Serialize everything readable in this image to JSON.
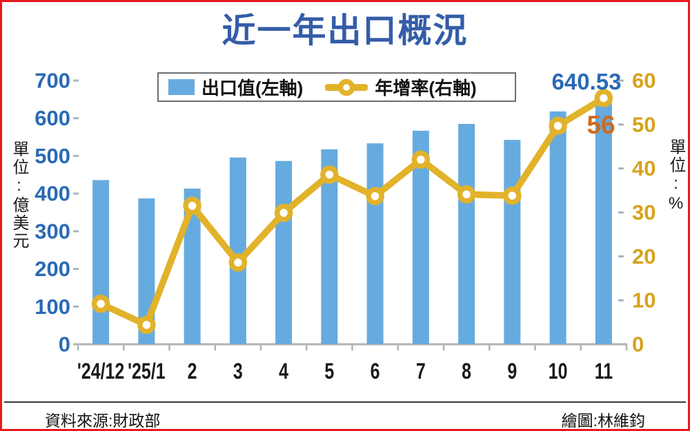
{
  "title": {
    "text": "近一年出口概況"
  },
  "legend": {
    "items": [
      {
        "label": "出口值(左軸)",
        "swatch": "bar"
      },
      {
        "label": "年增率(右軸)",
        "swatch": "line-marker"
      }
    ]
  },
  "axes": {
    "left_unit": "單位:億美元",
    "right_unit": "單位:%"
  },
  "annotations": {
    "last_export_value": "640.53",
    "last_growth_rate": "56"
  },
  "footer": {
    "source": "資料來源:財政部",
    "credit": "繪圖:林維鈞"
  },
  "colors": {
    "frame_border": "#e8191f",
    "bar": "#66abdf",
    "line": "#e2b22a",
    "title_text": "#345da8",
    "left_axis_text": "#2a6ab3",
    "right_axis_text": "#d6a31b",
    "growth_annotation": "#d06a1f",
    "x_axis_text": "#1a1a1a",
    "axis_line": "#b3b3b3",
    "tick_dash": "#a9b4be"
  },
  "chart_data": {
    "type": "combo-bar-line",
    "title": "近一年出口概況",
    "categories": [
      "'24/12",
      "'25/1",
      "2",
      "3",
      "4",
      "5",
      "6",
      "7",
      "8",
      "9",
      "10",
      "11"
    ],
    "series": [
      {
        "name": "出口值(左軸)",
        "type": "bar",
        "axis": "left",
        "unit": "億美元",
        "color": "#66abdf",
        "values": [
          435.8,
          387.1,
          413.1,
          495.7,
          486.6,
          517.4,
          533.3,
          566.8,
          584.9,
          542.5,
          618.1,
          640.53
        ]
      },
      {
        "name": "年增率(右軸)",
        "type": "line",
        "axis": "right",
        "unit": "%",
        "color": "#e2b22a",
        "values": [
          9.2,
          4.4,
          31.5,
          18.6,
          29.9,
          38.6,
          33.7,
          42.0,
          34.1,
          33.8,
          49.7,
          56.0
        ]
      }
    ],
    "left_axis": {
      "label": "單位:億美元",
      "range": [
        0,
        700
      ],
      "tick_step": 100,
      "ticks": [
        0,
        100,
        200,
        300,
        400,
        500,
        600,
        700
      ]
    },
    "right_axis": {
      "label": "單位:%",
      "range": [
        0,
        60
      ],
      "tick_step": 10,
      "ticks": [
        0,
        10,
        20,
        30,
        40,
        50,
        60
      ]
    },
    "point_labels": [
      {
        "category": "11",
        "series": "出口值(左軸)",
        "text": "640.53"
      },
      {
        "category": "11",
        "series": "年增率(右軸)",
        "text": "56"
      }
    ],
    "legend_position": "top-center",
    "grid": false
  }
}
